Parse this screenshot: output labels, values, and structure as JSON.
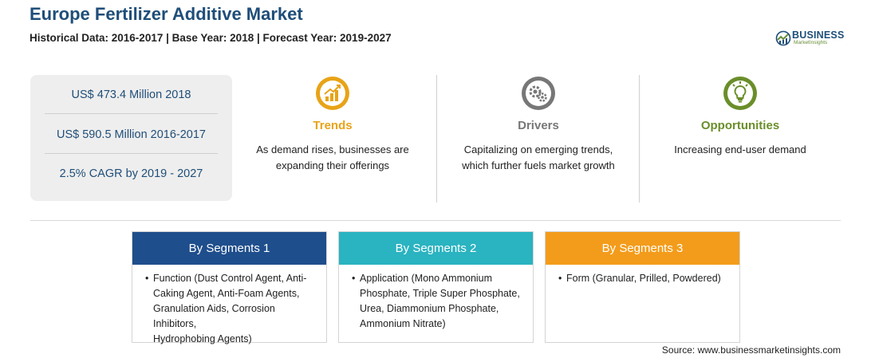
{
  "header": {
    "title": "Europe Fertilizer Additive Market",
    "subtitle": "Historical Data: 2016-2017 | Base Year: 2018 | Forecast Year: 2019-2027"
  },
  "logo": {
    "name": "BUSINESS",
    "tagline": "MarketInsights",
    "colors": {
      "primary": "#1f4e79",
      "accent": "#6a8e3a"
    }
  },
  "stats": [
    {
      "text": "US$ 473.4 Million 2018"
    },
    {
      "text": "US$ 590.5 Million 2016-2017"
    },
    {
      "text": "2.5% CAGR by 2019 - 2027"
    }
  ],
  "factors": [
    {
      "label": "Trends",
      "icon": "rising-chart-icon",
      "color": "#e8a317",
      "text_lines": [
        "As demand rises, businesses are",
        "expanding their offerings"
      ]
    },
    {
      "label": "Drivers",
      "icon": "gears-icon",
      "color": "#777777",
      "text_lines": [
        "Capitalizing on emerging trends,",
        "which further fuels market growth"
      ]
    },
    {
      "label": "Opportunities",
      "icon": "lightbulb-icon",
      "color": "#6a8e2a",
      "text_lines": [
        "Increasing end-user demand"
      ]
    }
  ],
  "segments": [
    {
      "title": "By Segments 1",
      "color": "#1f4e8c",
      "bullet": "•",
      "lines": [
        "Function (Dust Control Agent, Anti-",
        "Caking Agent, Anti-Foam Agents,",
        "Granulation Aids, Corrosion Inhibitors,",
        "Hydrophobing Agents)"
      ]
    },
    {
      "title": "By Segments 2",
      "color": "#2ab3c0",
      "bullet": "•",
      "lines": [
        "Application (Mono Ammonium",
        "Phosphate, Triple Super Phosphate,",
        "Urea, Diammonium Phosphate,",
        "Ammonium Nitrate)"
      ]
    },
    {
      "title": "By Segments 3",
      "color": "#f39c1b",
      "bullet": "•",
      "lines": [
        "Form (Granular, Prilled, Powdered)"
      ]
    }
  ],
  "footer": {
    "source": "Source: www.businessmarketinsights.com"
  }
}
